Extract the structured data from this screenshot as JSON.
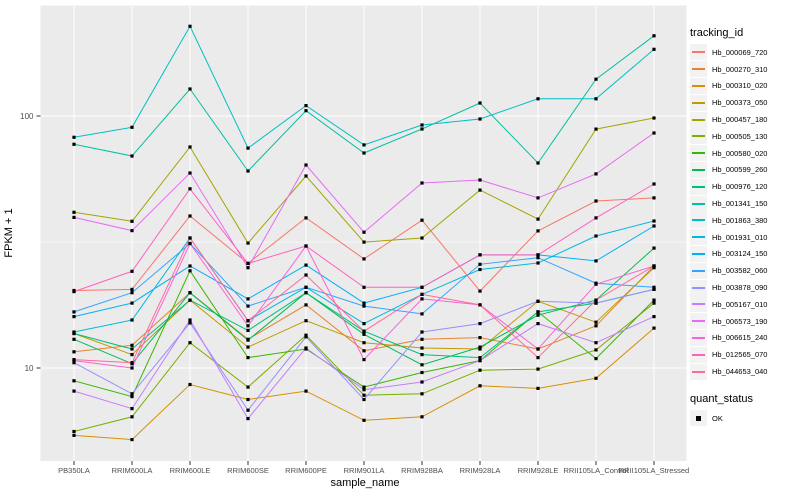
{
  "figure": {
    "panel_bg": "#EBEBEB",
    "grid_color": "#FFFFFF",
    "tick_label_color": "#4D4D4D",
    "tick_mark_color": "#333333",
    "axis_title_color": "#000000",
    "point_color": "#000000"
  },
  "axes": {
    "y": {
      "label": "FPKM + 1",
      "ticks": [
        "10",
        "100"
      ],
      "scale": "log10"
    },
    "x": {
      "label": "sample_name"
    }
  },
  "legend": {
    "tracking_title": "tracking_id",
    "quant_title": "quant_status",
    "quant_items": [
      {
        "label": "OK",
        "marker": "black-square"
      }
    ]
  },
  "chart_data": {
    "type": "line",
    "title": "",
    "xlabel": "sample_name",
    "ylabel": "FPKM + 1",
    "y_scale": "log10",
    "y_ticks": [
      10,
      100
    ],
    "y_minor_ticks": [
      31.6
    ],
    "ylim": [
      4.2,
      280
    ],
    "grid": true,
    "legend_position": "right",
    "point_shape": "filled-square",
    "point_color": "#000000",
    "categories": [
      "PB350LA",
      "RRIM600LA",
      "RRIM600LE",
      "RRIM600SE",
      "RRIM600PE",
      "RRIM901LA",
      "RRIM928BA",
      "RRIM928LA",
      "RRIM928LE",
      "RRII105LA_Control",
      "RRII105LA_Stressed"
    ],
    "series": [
      {
        "name": "Hb_000069_720",
        "color": "#F8766D",
        "values": [
          20.3,
          20.5,
          40.1,
          26.0,
          39.4,
          27.1,
          38.6,
          20.2,
          35.0,
          46.0,
          47.3
        ]
      },
      {
        "name": "Hb_000270_310",
        "color": "#EA8331",
        "values": [
          11.6,
          12.3,
          19.9,
          13.0,
          17.8,
          11.7,
          13.0,
          13.2,
          11.9,
          14.7,
          25.4
        ]
      },
      {
        "name": "Hb_000310_020",
        "color": "#D89000",
        "values": [
          5.4,
          5.2,
          8.6,
          7.5,
          8.1,
          6.2,
          6.4,
          8.5,
          8.3,
          9.1,
          14.4
        ]
      },
      {
        "name": "Hb_000373_050",
        "color": "#C09B00",
        "values": [
          13.7,
          11.3,
          18.6,
          12.1,
          15.4,
          12.6,
          12.0,
          11.9,
          18.4,
          15.2,
          25.0
        ]
      },
      {
        "name": "Hb_000457_180",
        "color": "#A3A500",
        "values": [
          41.5,
          38.2,
          75.3,
          31.3,
          57.8,
          31.6,
          32.8,
          50.8,
          39.0,
          88.7,
          98.2
        ]
      },
      {
        "name": "Hb_000505_130",
        "color": "#7CAE00",
        "values": [
          5.6,
          6.4,
          12.6,
          8.4,
          13.5,
          7.8,
          7.9,
          9.8,
          9.9,
          11.8,
          18.1
        ]
      },
      {
        "name": "Hb_000580_020",
        "color": "#39B600",
        "values": [
          8.9,
          7.7,
          24.3,
          11.0,
          11.9,
          8.4,
          9.6,
          10.7,
          16.7,
          10.9,
          18.6
        ]
      },
      {
        "name": "Hb_000599_260",
        "color": "#00BB4E",
        "values": [
          13.0,
          10.4,
          19.9,
          12.9,
          19.9,
          13.6,
          10.3,
          12.1,
          16.2,
          18.6,
          29.9
        ]
      },
      {
        "name": "Hb_000976_120",
        "color": "#00BF7D",
        "values": [
          13.7,
          11.9,
          18.6,
          14.1,
          19.9,
          14.0,
          11.3,
          11.0,
          16.7,
          18.1,
          20.5
        ]
      },
      {
        "name": "Hb_001341_150",
        "color": "#00C1A3",
        "values": [
          77.2,
          69.4,
          128.0,
          60.5,
          105.0,
          71.3,
          88.8,
          112.6,
          65.1,
          140.0,
          208.0
        ]
      },
      {
        "name": "Hb_001863_380",
        "color": "#00BFC4",
        "values": [
          82.3,
          90.2,
          227.0,
          74.6,
          110.0,
          76.8,
          92.1,
          97.3,
          117.0,
          117.0,
          184.0
        ]
      },
      {
        "name": "Hb_001931_010",
        "color": "#00BAE0",
        "values": [
          13.9,
          15.5,
          32.8,
          15.4,
          20.9,
          15.0,
          19.6,
          24.6,
          26.1,
          33.4,
          38.3
        ]
      },
      {
        "name": "Hb_003124_150",
        "color": "#00B0F6",
        "values": [
          16.0,
          18.1,
          25.4,
          18.8,
          25.6,
          18.1,
          20.9,
          28.1,
          28.1,
          26.6,
          36.6
        ]
      },
      {
        "name": "Hb_003582_060",
        "color": "#35A2FF",
        "values": [
          16.7,
          19.9,
          31.2,
          17.6,
          20.9,
          17.6,
          16.4,
          25.8,
          27.4,
          21.7,
          20.9
        ]
      },
      {
        "name": "Hb_003878_090",
        "color": "#9590FF",
        "values": [
          10.5,
          7.9,
          15.1,
          6.8,
          13.3,
          7.5,
          13.9,
          15.0,
          18.4,
          18.1,
          20.5
        ]
      },
      {
        "name": "Hb_005167_010",
        "color": "#C77CFF",
        "values": [
          8.1,
          6.9,
          15.5,
          6.3,
          12.0,
          8.2,
          8.8,
          10.7,
          15.0,
          12.6,
          16.0
        ]
      },
      {
        "name": "Hb_006573_190",
        "color": "#E76BF3",
        "values": [
          39.6,
          35.1,
          59.4,
          25.0,
          63.9,
          34.6,
          54.2,
          55.7,
          47.3,
          58.9,
          85.6
        ]
      },
      {
        "name": "Hb_006615_240",
        "color": "#FA62DB",
        "values": [
          10.7,
          10.0,
          31.2,
          14.7,
          30.5,
          10.8,
          18.8,
          17.8,
          11.9,
          21.5,
          25.4
        ]
      },
      {
        "name": "Hb_012565_070",
        "color": "#FF62BC",
        "values": [
          20.1,
          24.2,
          51.4,
          26.0,
          30.5,
          20.9,
          20.9,
          28.1,
          28.1,
          39.4,
          53.7
        ]
      },
      {
        "name": "Hb_044653_040",
        "color": "#FF6A98",
        "values": [
          10.8,
          10.5,
          32.8,
          15.4,
          23.4,
          14.0,
          19.6,
          17.8,
          11.0,
          18.6,
          25.4
        ]
      }
    ]
  }
}
